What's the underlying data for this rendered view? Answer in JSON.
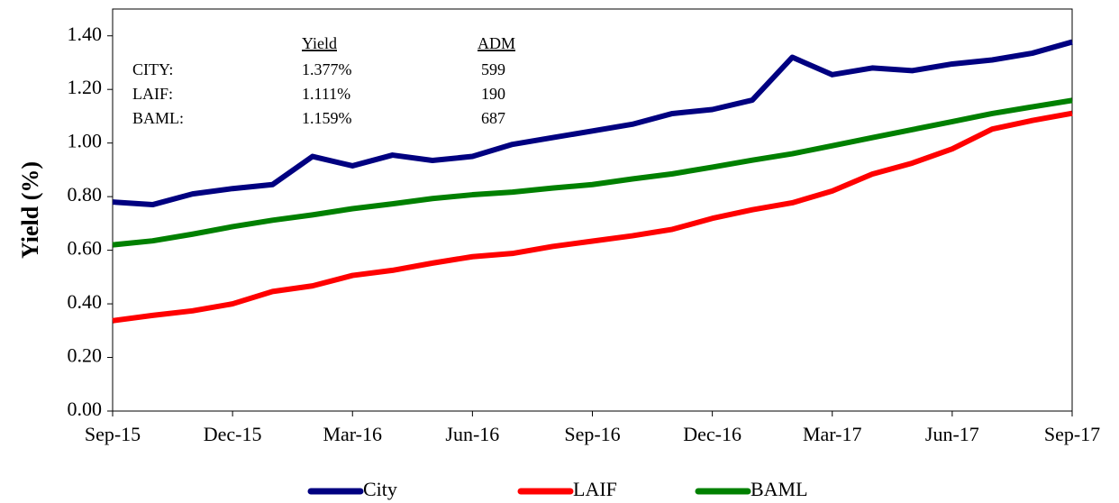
{
  "chart_data": {
    "type": "line",
    "y_label": "Yield (%)",
    "categories": [
      "Sep-15",
      null,
      null,
      "Dec-15",
      null,
      null,
      "Mar-16",
      null,
      null,
      "Jun-16",
      null,
      null,
      "Sep-16",
      null,
      null,
      "Dec-16",
      null,
      null,
      "Mar-17",
      null,
      null,
      "Jun-17",
      null,
      null,
      "Sep-17"
    ],
    "series": [
      {
        "name": "City",
        "color": "#000080",
        "values": [
          0.78,
          0.77,
          0.81,
          0.83,
          0.845,
          0.95,
          0.915,
          0.955,
          0.935,
          0.95,
          0.995,
          1.02,
          1.045,
          1.07,
          1.11,
          1.125,
          1.16,
          1.32,
          1.255,
          1.28,
          1.27,
          1.295,
          1.31,
          1.335,
          1.377
        ]
      },
      {
        "name": "LAIF",
        "color": "#ff0000",
        "values": [
          0.337,
          0.357,
          0.374,
          0.4,
          0.446,
          0.467,
          0.506,
          0.525,
          0.552,
          0.576,
          0.588,
          0.614,
          0.634,
          0.654,
          0.678,
          0.719,
          0.751,
          0.777,
          0.821,
          0.884,
          0.925,
          0.978,
          1.052,
          1.084,
          1.111
        ]
      },
      {
        "name": "BAML",
        "color": "#008000",
        "values": [
          0.62,
          0.635,
          0.66,
          0.688,
          0.712,
          0.732,
          0.755,
          0.773,
          0.793,
          0.807,
          0.817,
          0.832,
          0.845,
          0.866,
          0.885,
          0.91,
          0.936,
          0.96,
          0.99,
          1.02,
          1.05,
          1.08,
          1.11,
          1.135,
          1.159
        ]
      }
    ],
    "ylim": [
      0,
      1.5
    ],
    "yticks": [
      {
        "value": 0,
        "label": "0.00"
      },
      {
        "value": 0.2,
        "label": "0.20"
      },
      {
        "value": 0.4,
        "label": "0.40"
      },
      {
        "value": 0.6,
        "label": "0.60"
      },
      {
        "value": 0.8,
        "label": "0.80"
      },
      {
        "value": 1,
        "label": "1.00"
      },
      {
        "value": 1.2,
        "label": "1.20"
      },
      {
        "value": 1.4,
        "label": "1.40"
      }
    ],
    "grid": false,
    "legend": "bottom",
    "annotation": {
      "headers": [
        "Yield",
        "ADM"
      ],
      "rows": [
        [
          "CITY:",
          "1.377%",
          "599"
        ],
        [
          "LAIF:",
          "1.111%",
          "190"
        ],
        [
          "BAML:",
          "1.159%",
          "687"
        ]
      ]
    }
  }
}
